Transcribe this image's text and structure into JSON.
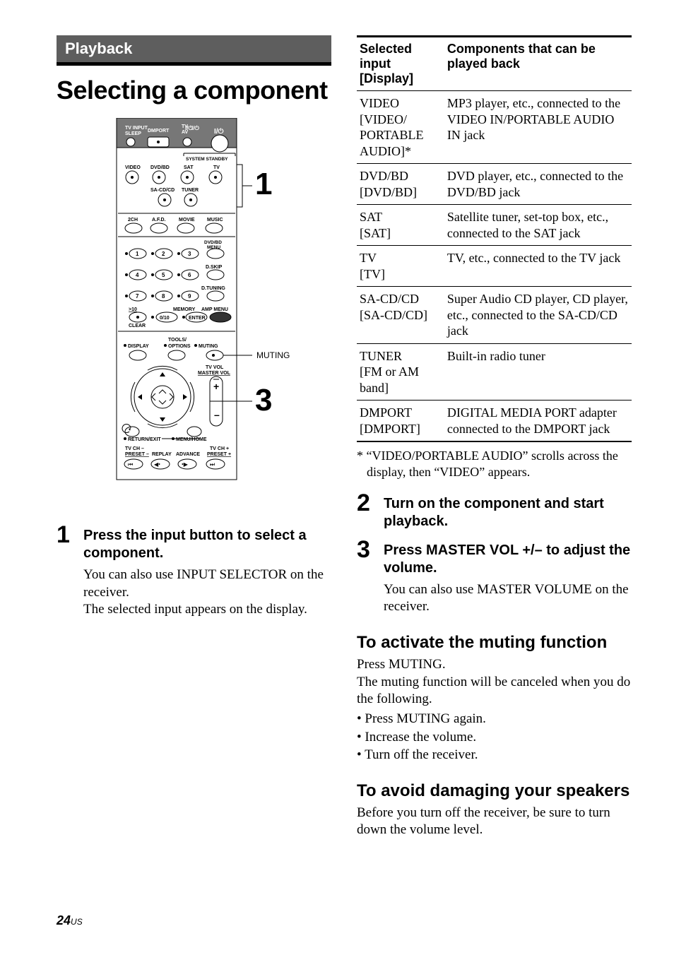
{
  "section_label": "Playback",
  "page_title": "Selecting a component",
  "remote": {
    "callouts": {
      "one": "1",
      "three": "3"
    },
    "muting_label": "MUTING",
    "labels": {
      "top_row": [
        "TV INPUT",
        "SLEEP",
        "DMPORT",
        "TV",
        "AV"
      ],
      "sys_standby": "SYSTEM STANDBY",
      "row2": [
        "VIDEO",
        "DVD/BD",
        "SAT",
        "TV"
      ],
      "row3a": "SA-CD/CD",
      "row3b": "TUNER",
      "sound_row": [
        "2CH",
        "A.F.D.",
        "MOVIE",
        "MUSIC"
      ],
      "dvd_menu": [
        "DVD/BD",
        "MENU"
      ],
      "dskip": "D.SKIP",
      "dtuning": "D.TUNING",
      "nums": [
        "1",
        "2",
        "3",
        "4",
        "5",
        "6",
        "7",
        "8",
        "9",
        "0/10"
      ],
      "gt10": ">10",
      "clear": "CLEAR",
      "memory": "MEMORY",
      "enter": "ENTER",
      "ampmenu": "AMP MENU",
      "display": "DISPLAY",
      "tools": [
        "TOOLS/",
        "OPTIONS"
      ],
      "muting": "MUTING",
      "tvvol": "TV VOL",
      "mastervol": "MASTER VOL",
      "return": "RETURN/EXIT",
      "menuhome": "MENU/HOME",
      "bottom": [
        "TV CH –",
        "PRESET –",
        "REPLAY",
        "ADVANCE",
        "TV CH +",
        "PRESET +"
      ]
    }
  },
  "steps_left": [
    {
      "num": "1",
      "title": "Press the input button to select a component.",
      "desc": "You can also use INPUT SELECTOR on the receiver.\nThe selected input appears on the display."
    }
  ],
  "table": {
    "head": [
      "Selected input\n[Display]",
      "Components that can be played back"
    ],
    "rows": [
      [
        "VIDEO\n[VIDEO/\nPORTABLE AUDIO]*",
        "MP3 player, etc., connected to the VIDEO IN/PORTABLE AUDIO IN jack"
      ],
      [
        "DVD/BD\n[DVD/BD]",
        "DVD player, etc., connected to the DVD/BD jack"
      ],
      [
        "SAT\n[SAT]",
        "Satellite tuner, set-top box, etc., connected to the SAT jack"
      ],
      [
        "TV\n[TV]",
        "TV, etc., connected to the TV jack"
      ],
      [
        "SA-CD/CD\n[SA-CD/CD]",
        "Super Audio CD player, CD player, etc., connected to the SA-CD/CD jack"
      ],
      [
        "TUNER\n[FM or AM band]",
        "Built-in radio tuner"
      ],
      [
        "DMPORT\n[DMPORT]",
        "DIGITAL MEDIA PORT adapter connected to the DMPORT jack"
      ]
    ]
  },
  "footnote": "* “VIDEO/PORTABLE AUDIO” scrolls across the display, then “VIDEO” appears.",
  "steps_right": [
    {
      "num": "2",
      "title": "Turn on the component and start playback."
    },
    {
      "num": "3",
      "title": "Press MASTER VOL +/– to adjust the volume.",
      "desc": "You can also use MASTER VOLUME on the receiver."
    }
  ],
  "muting_section": {
    "heading": "To activate the muting function",
    "lines": [
      "Press MUTING.",
      "The muting function will be canceled when you do the following."
    ],
    "bullets": [
      "Press MUTING again.",
      "Increase the volume.",
      "Turn off the receiver."
    ]
  },
  "damage_section": {
    "heading": "To avoid damaging your speakers",
    "body": "Before you turn off the receiver, be sure to turn down the volume level."
  },
  "page_number": "24",
  "page_suffix": "US",
  "colors": {
    "header_bg": "#5e5e5e",
    "header_fg": "#ffffff",
    "rule": "#000000"
  }
}
